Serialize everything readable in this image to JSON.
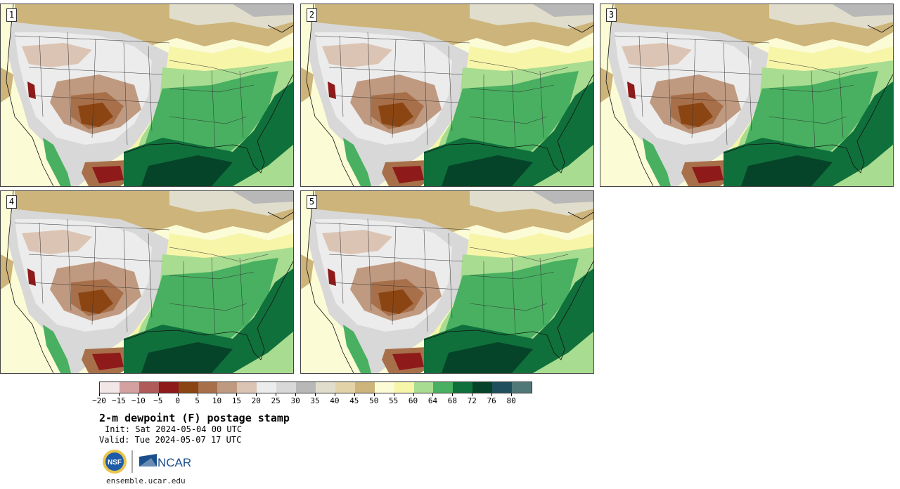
{
  "panels": [
    {
      "label": "1"
    },
    {
      "label": "2"
    },
    {
      "label": "3"
    },
    {
      "label": "4"
    },
    {
      "label": "5"
    }
  ],
  "colorbar": {
    "colors": [
      "#f2e6e6",
      "#d4a0a0",
      "#b05a5a",
      "#8e1a1a",
      "#8b4513",
      "#a8704a",
      "#c09a80",
      "#dcc4b4",
      "#ececec",
      "#d8d8d8",
      "#b8b8b8",
      "#e0ddcc",
      "#e2d3a8",
      "#cdb47a",
      "#fbfbd6",
      "#f7f5a8",
      "#a8dc90",
      "#48b060",
      "#10703c",
      "#054428",
      "#1f4f5c",
      "#507878"
    ],
    "tick_labels": [
      "−20",
      "−15",
      "−10",
      "−5",
      "0",
      "5",
      "10",
      "15",
      "20",
      "25",
      "30",
      "35",
      "40",
      "45",
      "50",
      "55",
      "60",
      "64",
      "68",
      "72",
      "76",
      "80"
    ]
  },
  "title": "2-m dewpoint (F) postage stamp",
  "init": "Init: Sat 2024-05-04 00 UTC",
  "valid": "Valid: Tue 2024-05-07 17 UTC",
  "logos": {
    "nsf": "NSF",
    "ncar": "NCAR"
  },
  "site": "ensemble.ucar.edu"
}
